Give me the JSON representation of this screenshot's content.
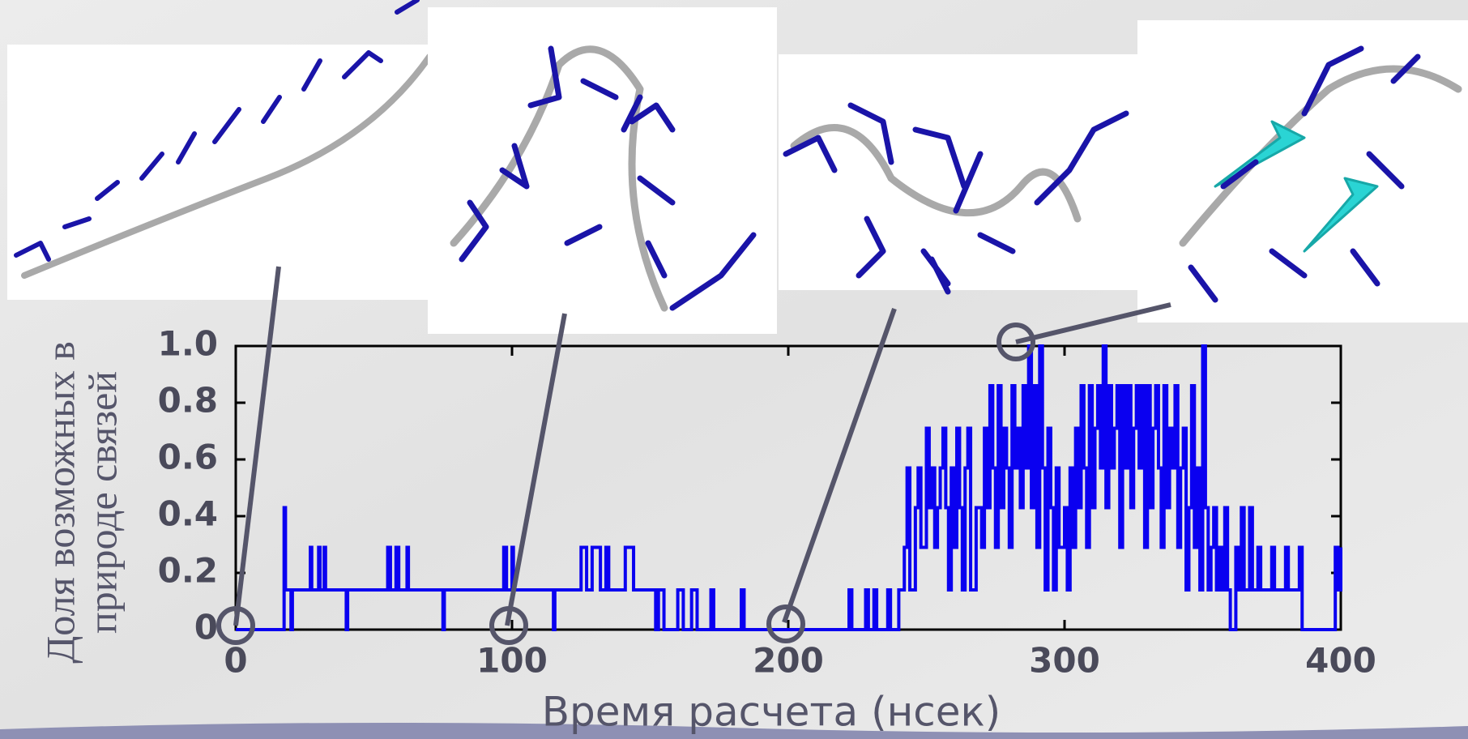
{
  "chart_data": {
    "type": "line",
    "step": true,
    "x_label": "Время расчета (нсек)",
    "y_label": [
      "Доля возможных в",
      "природе связей"
    ],
    "x": [
      0,
      17,
      17.5,
      18,
      20,
      20.5,
      27,
      27.5,
      30,
      30.5,
      32,
      32.5,
      40,
      40.5,
      55,
      56,
      58,
      59,
      62,
      62.5,
      75,
      75.5,
      97,
      98,
      100,
      100.5,
      115,
      115.5,
      125,
      127,
      129,
      132,
      134,
      135,
      141,
      144,
      152,
      153,
      155,
      160,
      162,
      165,
      167,
      172,
      173,
      183,
      184,
      222,
      223,
      228,
      229,
      231,
      232,
      236,
      237,
      240,
      242,
      243,
      244,
      246,
      247,
      248,
      250,
      251,
      252,
      253,
      254,
      255,
      256,
      257,
      258,
      259,
      260,
      261,
      262,
      263,
      264,
      265,
      266,
      268,
      270,
      271,
      272,
      273,
      274,
      275,
      276,
      277,
      278,
      279,
      280,
      281,
      282,
      283,
      284,
      285,
      286,
      287,
      288,
      289,
      290,
      291,
      292,
      293,
      294,
      295,
      296,
      297,
      298,
      300,
      301,
      302,
      303,
      304,
      305,
      306,
      307,
      308,
      309,
      310,
      311,
      312,
      313,
      314,
      315,
      316,
      317,
      318,
      319,
      320,
      321,
      322,
      323,
      324,
      325,
      326,
      327,
      328,
      329,
      330,
      331,
      332,
      333,
      334,
      335,
      336,
      337,
      338,
      339,
      340,
      341,
      342,
      343,
      344,
      345,
      346,
      347,
      348,
      349,
      350,
      351,
      352,
      353,
      354,
      355,
      356,
      357,
      358,
      359,
      360,
      362,
      363,
      364,
      365,
      367,
      368,
      370,
      371,
      375,
      376,
      380,
      381,
      385,
      386,
      397,
      398,
      399,
      400
    ],
    "series": [
      {
        "color": "#0a00f0",
        "values": [
          0,
          0,
          0.43,
          0.14,
          0,
          0.14,
          0.29,
          0.14,
          0.29,
          0.14,
          0.29,
          0.14,
          0,
          0.14,
          0.29,
          0.14,
          0.29,
          0.14,
          0.29,
          0.14,
          0,
          0.14,
          0.29,
          0.14,
          0.29,
          0.14,
          0,
          0.14,
          0.29,
          0.14,
          0.29,
          0.14,
          0.29,
          0.14,
          0.29,
          0.14,
          0,
          0.14,
          0,
          0.14,
          0,
          0.14,
          0,
          0.14,
          0,
          0.14,
          0,
          0.14,
          0,
          0.14,
          0,
          0.14,
          0,
          0.14,
          0,
          0.14,
          0.29,
          0.57,
          0.14,
          0.43,
          0.57,
          0.29,
          0.71,
          0.43,
          0.57,
          0.29,
          0.43,
          0.57,
          0.71,
          0.43,
          0.14,
          0.57,
          0.29,
          0.71,
          0.43,
          0.14,
          0.57,
          0.71,
          0.14,
          0.43,
          0.29,
          0.71,
          0.43,
          0.86,
          0.57,
          0.29,
          0.86,
          0.43,
          0.71,
          0.57,
          0.29,
          0.86,
          0.57,
          0.71,
          0.43,
          0.86,
          0.57,
          1.0,
          0.43,
          0.86,
          0.29,
          1.0,
          0.57,
          0.14,
          0.71,
          0.43,
          0.14,
          0.57,
          0.29,
          0.43,
          0.14,
          0.57,
          0.29,
          0.71,
          0.43,
          0.86,
          0.57,
          0.29,
          0.86,
          0.43,
          0.71,
          0.86,
          0.57,
          1.0,
          0.43,
          0.86,
          0.57,
          0.71,
          0.86,
          0.29,
          0.86,
          0.57,
          0.86,
          0.43,
          0.71,
          0.86,
          0.57,
          0.86,
          0.29,
          0.86,
          0.43,
          0.71,
          0.86,
          0.57,
          0.29,
          0.86,
          0.43,
          0.71,
          0.57,
          0.86,
          0.29,
          0.57,
          0.71,
          0.14,
          0.43,
          0.86,
          0.29,
          0.57,
          0.14,
          1.0,
          0.43,
          0.14,
          0.29,
          0.43,
          0.14,
          0.29,
          0.14,
          0.43,
          0.14,
          0,
          0.29,
          0.14,
          0.43,
          0.14,
          0.43,
          0.14,
          0.29,
          0.14,
          0.29,
          0.14,
          0.29,
          0.14,
          0.29,
          0,
          0,
          0.29,
          0.14,
          0.29
        ]
      }
    ],
    "xlim": [
      0,
      400
    ],
    "xticks": [
      0,
      100,
      200,
      300,
      400
    ],
    "ylim": [
      0,
      1
    ],
    "yticks": [
      0,
      0.2,
      0.4,
      0.6,
      0.8,
      {
        "value": 1,
        "label": "1.0"
      }
    ]
  }
}
